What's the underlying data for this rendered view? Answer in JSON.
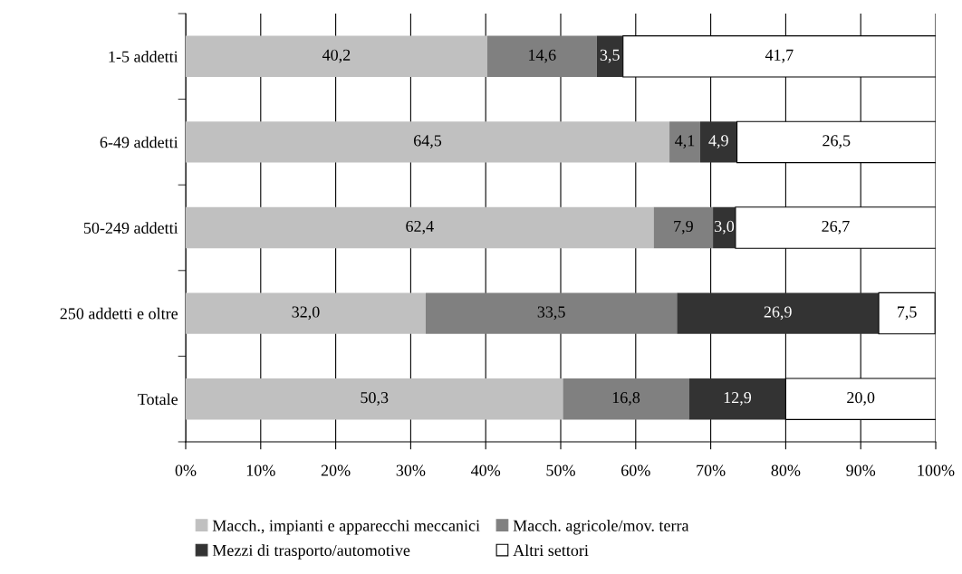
{
  "chart_data": {
    "type": "bar",
    "orientation": "horizontal",
    "stacked": true,
    "categories": [
      "1-5 addetti",
      "6-49 addetti",
      "50-249 addetti",
      "250 addetti e oltre",
      "Totale"
    ],
    "series": [
      {
        "name": "Macch., impianti e apparecchi meccanici",
        "color": "#c0c0c0",
        "values": [
          40.2,
          64.5,
          62.4,
          32.0,
          50.3
        ],
        "value_labels": [
          "40,2",
          "64,5",
          "62,4",
          "32,0",
          "50,3"
        ]
      },
      {
        "name": "Macch. agricole/mov. terra",
        "color": "#808080",
        "values": [
          14.6,
          4.1,
          7.9,
          33.5,
          16.8
        ],
        "value_labels": [
          "14,6",
          "4,1",
          "7,9",
          "33,5",
          "16,8"
        ]
      },
      {
        "name": "Mezzi di trasporto/automotive",
        "color": "#333333",
        "values": [
          3.5,
          4.9,
          3.0,
          26.9,
          12.9
        ],
        "value_labels": [
          "3,5",
          "4,9",
          "3,0",
          "26,9",
          "12,9"
        ]
      },
      {
        "name": "Altri settori",
        "color": "#ffffff",
        "values": [
          41.7,
          26.5,
          26.7,
          7.5,
          20.0
        ],
        "value_labels": [
          "41,7",
          "26,5",
          "26,7",
          "7,5",
          "20,0"
        ]
      }
    ],
    "xlim": [
      0,
      100
    ],
    "xticks": [
      {
        "value": 0,
        "label": "0%"
      },
      {
        "value": 10,
        "label": "10%"
      },
      {
        "value": 20,
        "label": "20%"
      },
      {
        "value": 30,
        "label": "30%"
      },
      {
        "value": 40,
        "label": "40%"
      },
      {
        "value": 50,
        "label": "50%"
      },
      {
        "value": 60,
        "label": "60%"
      },
      {
        "value": 70,
        "label": "70%"
      },
      {
        "value": 80,
        "label": "80%"
      },
      {
        "value": 90,
        "label": "90%"
      },
      {
        "value": 100,
        "label": "100%"
      }
    ],
    "grid": "x",
    "legend": "bottom"
  }
}
